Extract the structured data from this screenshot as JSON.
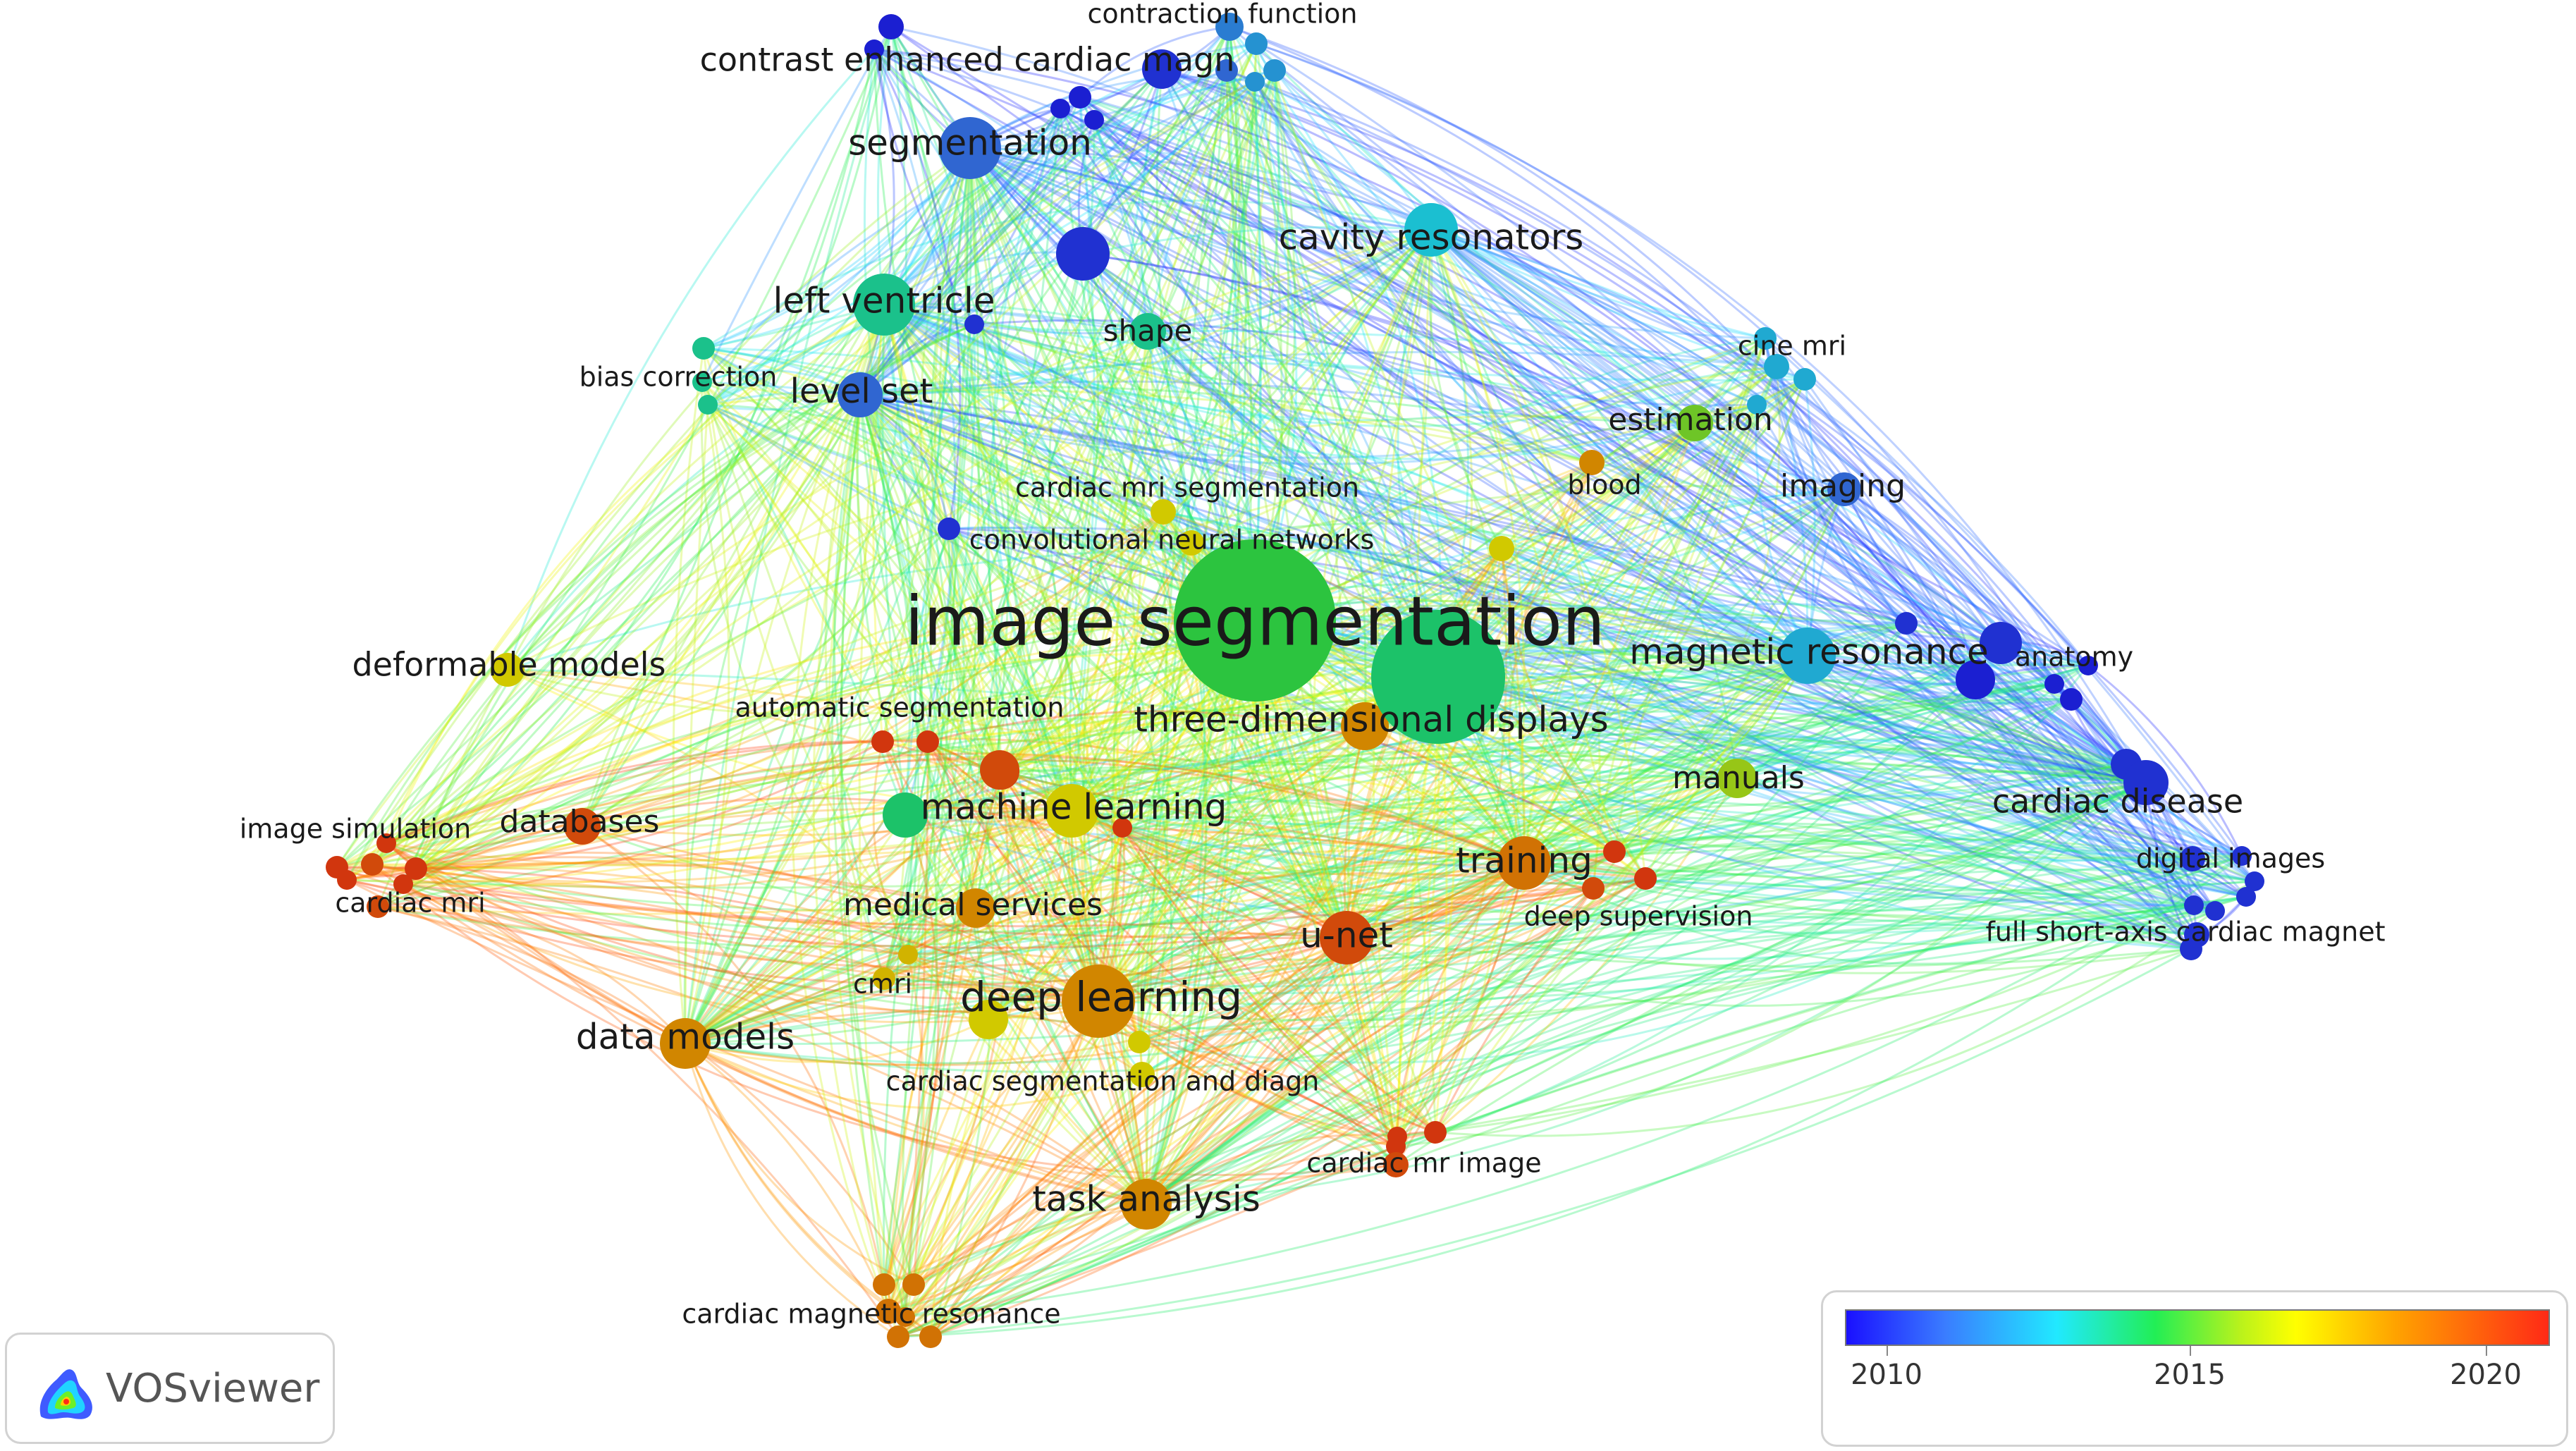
{
  "app": {
    "name": "VOSviewer"
  },
  "legend": {
    "ticks": [
      "2010",
      "2015",
      "2020"
    ]
  },
  "nodes": [
    {
      "id": "image-segmentation",
      "label": "image segmentation",
      "year": 2016.2,
      "weight": 10
    },
    {
      "id": "three-dimensional-displays",
      "label": "three-dimensional displays",
      "year": 2015.5,
      "weight": 8
    },
    {
      "id": "segmentation",
      "label": "segmentation",
      "year": 2012.0,
      "weight": 5
    },
    {
      "id": "cavity-resonators",
      "label": "cavity resonators",
      "year": 2014.0,
      "weight": 5
    },
    {
      "id": "left-ventricle",
      "label": "left ventricle",
      "year": 2015.0,
      "weight": 5
    },
    {
      "id": "level-set",
      "label": "level set",
      "year": 2012.0,
      "weight": 4
    },
    {
      "id": "shape",
      "label": "shape",
      "year": 2015.0,
      "weight": 3
    },
    {
      "id": "bias-correction",
      "label": "bias correction",
      "year": 2015.0,
      "weight": 2
    },
    {
      "id": "contrast-enhanced-cardiac-magn",
      "label": "contrast enhanced cardiac magn",
      "year": 2010.5,
      "weight": 3
    },
    {
      "id": "contraction-function",
      "label": "contraction function",
      "year": 2012.5,
      "weight": 2
    },
    {
      "id": "cine-mri",
      "label": "cine mri",
      "year": 2013.5,
      "weight": 2
    },
    {
      "id": "estimation",
      "label": "estimation",
      "year": 2017.0,
      "weight": 3
    },
    {
      "id": "blood",
      "label": "blood",
      "year": 2020.5,
      "weight": 2
    },
    {
      "id": "imaging",
      "label": "imaging",
      "year": 2012.0,
      "weight": 3
    },
    {
      "id": "cardiac-mri-segmentation",
      "label": "cardiac mri segmentation",
      "year": 2019.0,
      "weight": 2
    },
    {
      "id": "convolutional-neural-networks",
      "label": "convolutional neural networks",
      "year": 2019.0,
      "weight": 2
    },
    {
      "id": "magnetic-resonance",
      "label": "magnetic resonance",
      "year": 2013.5,
      "weight": 5
    },
    {
      "id": "anatomy",
      "label": "anatomy",
      "year": 2010.5,
      "weight": 3
    },
    {
      "id": "deformable-models",
      "label": "deformable models",
      "year": 2019.0,
      "weight": 3
    },
    {
      "id": "automatic-segmentation",
      "label": "automatic segmentation",
      "year": 2022.0,
      "weight": 2
    },
    {
      "id": "machine-learning",
      "label": "machine learning",
      "year": 2019.0,
      "weight": 4
    },
    {
      "id": "manuals",
      "label": "manuals",
      "year": 2017.5,
      "weight": 3
    },
    {
      "id": "cardiac-disease",
      "label": "cardiac disease",
      "year": 2010.5,
      "weight": 4
    },
    {
      "id": "databases",
      "label": "databases",
      "year": 2022.0,
      "weight": 3
    },
    {
      "id": "image-simulation",
      "label": "image simulation",
      "year": 2022.0,
      "weight": 2
    },
    {
      "id": "cardiac-mri",
      "label": "cardiac mri",
      "year": 2022.0,
      "weight": 2
    },
    {
      "id": "training",
      "label": "training",
      "year": 2021.0,
      "weight": 4
    },
    {
      "id": "deep-supervision",
      "label": "deep supervision",
      "year": 2022.0,
      "weight": 2
    },
    {
      "id": "digital-images",
      "label": "digital images",
      "year": 2010.5,
      "weight": 2
    },
    {
      "id": "medical-services",
      "label": "medical services",
      "year": 2020.5,
      "weight": 3
    },
    {
      "id": "u-net",
      "label": "u-net",
      "year": 2022.0,
      "weight": 4
    },
    {
      "id": "full-short-axis-cardiac-magnet",
      "label": "full short-axis cardiac magnet",
      "year": 2010.5,
      "weight": 2
    },
    {
      "id": "cmri",
      "label": "cmri",
      "year": 2019.5,
      "weight": 2
    },
    {
      "id": "deep-learning",
      "label": "deep learning",
      "year": 2020.5,
      "weight": 6
    },
    {
      "id": "data-models",
      "label": "data models",
      "year": 2020.5,
      "weight": 4
    },
    {
      "id": "cardiac-segmentation-and-diagn",
      "label": "cardiac segmentation and diagn",
      "year": 2019.0,
      "weight": 2
    },
    {
      "id": "cardiac-mr-image",
      "label": "cardiac mr image",
      "year": 2022.0,
      "weight": 2
    },
    {
      "id": "task-analysis",
      "label": "task analysis",
      "year": 2020.5,
      "weight": 4
    },
    {
      "id": "cardiac-magnetic-resonance",
      "label": "cardiac magnetic resonance",
      "year": 2021.0,
      "weight": 2
    }
  ]
}
